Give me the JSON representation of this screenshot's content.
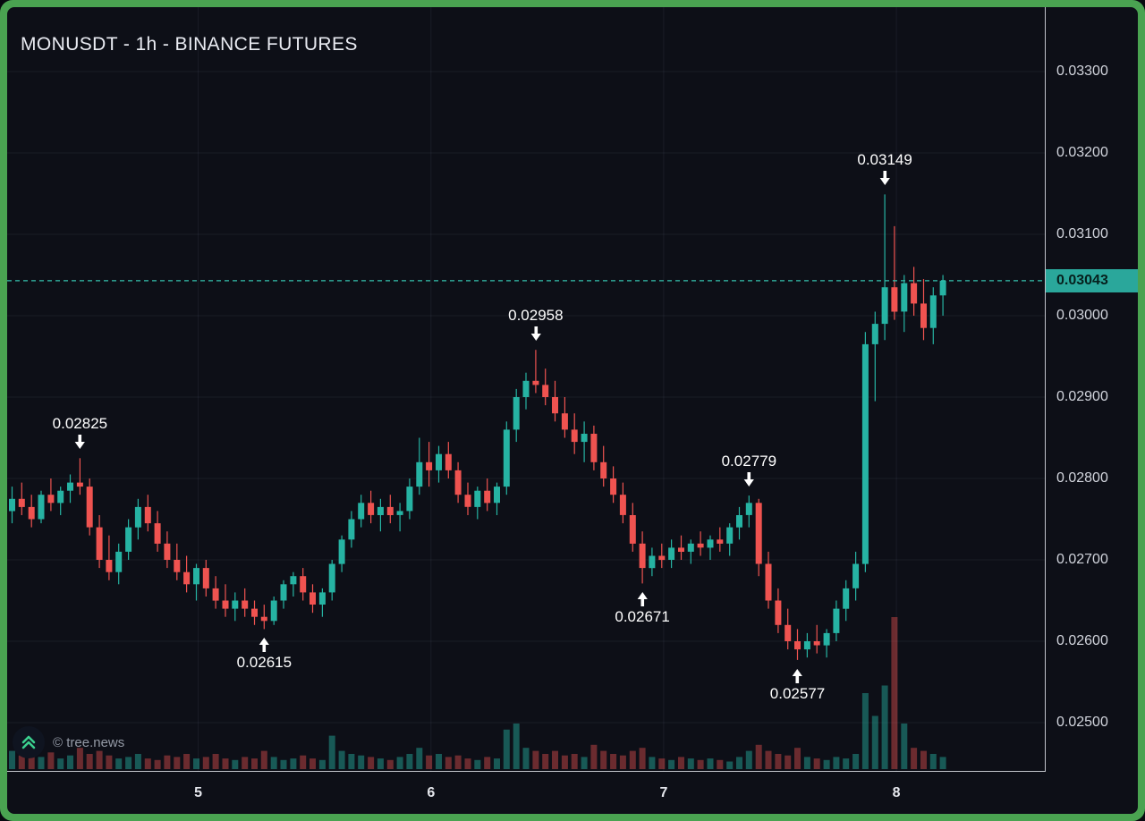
{
  "header": {
    "title": "MONUSDT - 1h - BINANCE FUTURES"
  },
  "footer": {
    "watermark": "© tree.news"
  },
  "colors": {
    "frame_green": "#4aa351",
    "background": "#0d0f17",
    "grid": "rgba(140,150,175,0.10)",
    "candle_up": "#26b3a3",
    "candle_down": "#ef5350",
    "volume_up": "rgba(38,179,163,0.45)",
    "volume_down": "rgba(239,83,80,0.42)",
    "price_line": "#35c2ae",
    "price_tag_bg": "#2aa79b",
    "price_tag_text": "#06201d",
    "axis_text": "#d2d5dd",
    "annotation_text": "#ffffff",
    "logo_green": "#3bcf8e"
  },
  "chart_data": {
    "type": "candlestick",
    "title": "MONUSDT - 1h - BINANCE FUTURES",
    "symbol": "MONUSDT",
    "interval": "1h",
    "exchange": "BINANCE FUTURES",
    "last_price": 0.03043,
    "last_price_label": "0.03043",
    "y_axis": {
      "min": 0.0245,
      "max": 0.0333,
      "ticks": [
        {
          "label": "0.03300",
          "value": 0.033
        },
        {
          "label": "0.03200",
          "value": 0.032
        },
        {
          "label": "0.03100",
          "value": 0.031
        },
        {
          "label": "0.03000",
          "value": 0.03
        },
        {
          "label": "0.02900",
          "value": 0.029
        },
        {
          "label": "0.02800",
          "value": 0.028
        },
        {
          "label": "0.02700",
          "value": 0.027
        },
        {
          "label": "0.02600",
          "value": 0.026
        },
        {
          "label": "0.02500",
          "value": 0.025
        }
      ]
    },
    "x_axis": {
      "day_ticks": [
        {
          "label": "5",
          "index": 19.2
        },
        {
          "label": "6",
          "index": 43.2
        },
        {
          "label": "7",
          "index": 67.2
        },
        {
          "label": "8",
          "index": 91.2
        }
      ]
    },
    "annotations": [
      {
        "label": "0.02825",
        "value": 0.02825,
        "index": 7,
        "direction": "high"
      },
      {
        "label": "0.02615",
        "value": 0.02615,
        "index": 26,
        "direction": "low"
      },
      {
        "label": "0.02958",
        "value": 0.02958,
        "index": 54,
        "direction": "high"
      },
      {
        "label": "0.02671",
        "value": 0.02671,
        "index": 65,
        "direction": "low"
      },
      {
        "label": "0.02779",
        "value": 0.02779,
        "index": 76,
        "direction": "high"
      },
      {
        "label": "0.02577",
        "value": 0.02577,
        "index": 81,
        "direction": "low"
      },
      {
        "label": "0.03149",
        "value": 0.03149,
        "index": 90,
        "direction": "high"
      }
    ],
    "candles": [
      [
        0.0276,
        0.0279,
        0.02745,
        0.02775,
        12
      ],
      [
        0.02775,
        0.02795,
        0.02755,
        0.02765,
        9
      ],
      [
        0.02765,
        0.0278,
        0.0274,
        0.0275,
        10
      ],
      [
        0.0275,
        0.02785,
        0.02745,
        0.0278,
        8
      ],
      [
        0.0278,
        0.028,
        0.0276,
        0.0277,
        11
      ],
      [
        0.0277,
        0.0279,
        0.02755,
        0.02785,
        7
      ],
      [
        0.02785,
        0.02805,
        0.0277,
        0.02795,
        9
      ],
      [
        0.02795,
        0.02825,
        0.0278,
        0.0279,
        14
      ],
      [
        0.0279,
        0.028,
        0.0273,
        0.0274,
        10
      ],
      [
        0.0274,
        0.02755,
        0.0269,
        0.027,
        12
      ],
      [
        0.027,
        0.0273,
        0.02675,
        0.02685,
        9
      ],
      [
        0.02685,
        0.0272,
        0.0267,
        0.0271,
        7
      ],
      [
        0.0271,
        0.0275,
        0.027,
        0.0274,
        8
      ],
      [
        0.0274,
        0.02775,
        0.02725,
        0.02765,
        10
      ],
      [
        0.02765,
        0.0278,
        0.02735,
        0.02745,
        7
      ],
      [
        0.02745,
        0.0276,
        0.0271,
        0.0272,
        6
      ],
      [
        0.0272,
        0.02735,
        0.0269,
        0.027,
        9
      ],
      [
        0.027,
        0.0272,
        0.02675,
        0.02685,
        8
      ],
      [
        0.02685,
        0.02705,
        0.0266,
        0.0267,
        10
      ],
      [
        0.0267,
        0.02695,
        0.0265,
        0.0269,
        7
      ],
      [
        0.0269,
        0.027,
        0.02655,
        0.02665,
        8
      ],
      [
        0.02665,
        0.0268,
        0.0264,
        0.0265,
        10
      ],
      [
        0.0265,
        0.0267,
        0.0263,
        0.0264,
        7
      ],
      [
        0.0264,
        0.0266,
        0.02625,
        0.0265,
        6
      ],
      [
        0.0265,
        0.02665,
        0.0263,
        0.0264,
        8
      ],
      [
        0.0264,
        0.0265,
        0.0262,
        0.0263,
        7
      ],
      [
        0.0263,
        0.02645,
        0.02615,
        0.02625,
        12
      ],
      [
        0.02625,
        0.02655,
        0.0262,
        0.0265,
        8
      ],
      [
        0.0265,
        0.02675,
        0.0264,
        0.0267,
        6
      ],
      [
        0.0267,
        0.02685,
        0.02655,
        0.0268,
        7
      ],
      [
        0.0268,
        0.0269,
        0.0265,
        0.0266,
        9
      ],
      [
        0.0266,
        0.0267,
        0.02635,
        0.02645,
        7
      ],
      [
        0.02645,
        0.02665,
        0.0263,
        0.0266,
        6
      ],
      [
        0.0266,
        0.027,
        0.0265,
        0.02695,
        22
      ],
      [
        0.02695,
        0.0273,
        0.02685,
        0.02725,
        12
      ],
      [
        0.02725,
        0.0276,
        0.02715,
        0.0275,
        10
      ],
      [
        0.0275,
        0.0278,
        0.0274,
        0.0277,
        9
      ],
      [
        0.0277,
        0.02785,
        0.02745,
        0.02755,
        8
      ],
      [
        0.02755,
        0.02775,
        0.02735,
        0.02765,
        7
      ],
      [
        0.02765,
        0.0278,
        0.02745,
        0.02755,
        6
      ],
      [
        0.02755,
        0.0277,
        0.02735,
        0.0276,
        8
      ],
      [
        0.0276,
        0.028,
        0.0275,
        0.0279,
        10
      ],
      [
        0.0279,
        0.0285,
        0.0278,
        0.0282,
        14
      ],
      [
        0.0282,
        0.02845,
        0.0279,
        0.0281,
        9
      ],
      [
        0.0281,
        0.0284,
        0.02795,
        0.0283,
        10
      ],
      [
        0.0283,
        0.02845,
        0.028,
        0.0281,
        8
      ],
      [
        0.0281,
        0.0282,
        0.0277,
        0.0278,
        9
      ],
      [
        0.0278,
        0.02795,
        0.02755,
        0.02765,
        7
      ],
      [
        0.02765,
        0.0279,
        0.0275,
        0.02785,
        6
      ],
      [
        0.02785,
        0.028,
        0.0276,
        0.0277,
        8
      ],
      [
        0.0277,
        0.02795,
        0.02755,
        0.0279,
        7
      ],
      [
        0.0279,
        0.0287,
        0.0278,
        0.0286,
        26
      ],
      [
        0.0286,
        0.0291,
        0.02845,
        0.029,
        30
      ],
      [
        0.029,
        0.0293,
        0.02885,
        0.0292,
        14
      ],
      [
        0.0292,
        0.02958,
        0.02905,
        0.02915,
        12
      ],
      [
        0.02915,
        0.02935,
        0.0289,
        0.029,
        10
      ],
      [
        0.029,
        0.0292,
        0.0287,
        0.0288,
        12
      ],
      [
        0.0288,
        0.029,
        0.0285,
        0.0286,
        9
      ],
      [
        0.0286,
        0.0288,
        0.0283,
        0.02845,
        10
      ],
      [
        0.02845,
        0.0287,
        0.0282,
        0.02855,
        8
      ],
      [
        0.02855,
        0.02865,
        0.0281,
        0.0282,
        16
      ],
      [
        0.0282,
        0.0284,
        0.0279,
        0.028,
        12
      ],
      [
        0.028,
        0.02815,
        0.0277,
        0.0278,
        10
      ],
      [
        0.0278,
        0.02795,
        0.02745,
        0.02755,
        9
      ],
      [
        0.02755,
        0.0277,
        0.0271,
        0.0272,
        12
      ],
      [
        0.0272,
        0.02735,
        0.02671,
        0.0269,
        14
      ],
      [
        0.0269,
        0.02715,
        0.0268,
        0.02705,
        8
      ],
      [
        0.02705,
        0.0272,
        0.0269,
        0.027,
        7
      ],
      [
        0.027,
        0.02725,
        0.0269,
        0.02715,
        6
      ],
      [
        0.02715,
        0.0273,
        0.027,
        0.0271,
        8
      ],
      [
        0.0271,
        0.02725,
        0.02695,
        0.0272,
        7
      ],
      [
        0.0272,
        0.02735,
        0.02705,
        0.02715,
        6
      ],
      [
        0.02715,
        0.0273,
        0.027,
        0.02725,
        7
      ],
      [
        0.02725,
        0.0274,
        0.0271,
        0.0272,
        6
      ],
      [
        0.0272,
        0.02745,
        0.02705,
        0.0274,
        5
      ],
      [
        0.0274,
        0.02765,
        0.02725,
        0.02755,
        8
      ],
      [
        0.02755,
        0.02779,
        0.0274,
        0.0277,
        12
      ],
      [
        0.0277,
        0.02775,
        0.0268,
        0.02695,
        16
      ],
      [
        0.02695,
        0.0271,
        0.0264,
        0.0265,
        12
      ],
      [
        0.0265,
        0.02665,
        0.0261,
        0.0262,
        10
      ],
      [
        0.0262,
        0.0264,
        0.0259,
        0.026,
        9
      ],
      [
        0.026,
        0.02615,
        0.02577,
        0.0259,
        14
      ],
      [
        0.0259,
        0.0261,
        0.0258,
        0.026,
        8
      ],
      [
        0.026,
        0.0262,
        0.02585,
        0.02595,
        7
      ],
      [
        0.02595,
        0.02615,
        0.0258,
        0.0261,
        6
      ],
      [
        0.0261,
        0.0265,
        0.026,
        0.0264,
        8
      ],
      [
        0.0264,
        0.02675,
        0.02625,
        0.02665,
        7
      ],
      [
        0.02665,
        0.0271,
        0.0265,
        0.02695,
        10
      ],
      [
        0.02695,
        0.0298,
        0.02685,
        0.02965,
        50
      ],
      [
        0.02965,
        0.03005,
        0.02895,
        0.0299,
        35
      ],
      [
        0.0299,
        0.03149,
        0.0297,
        0.03035,
        55
      ],
      [
        0.03035,
        0.0311,
        0.02995,
        0.03005,
        100
      ],
      [
        0.03005,
        0.0305,
        0.0298,
        0.0304,
        30
      ],
      [
        0.0304,
        0.0306,
        0.03,
        0.03015,
        14
      ],
      [
        0.03015,
        0.03045,
        0.0297,
        0.02985,
        12
      ],
      [
        0.02985,
        0.03035,
        0.02965,
        0.03025,
        10
      ],
      [
        0.03025,
        0.0305,
        0.03,
        0.03043,
        8
      ]
    ]
  }
}
